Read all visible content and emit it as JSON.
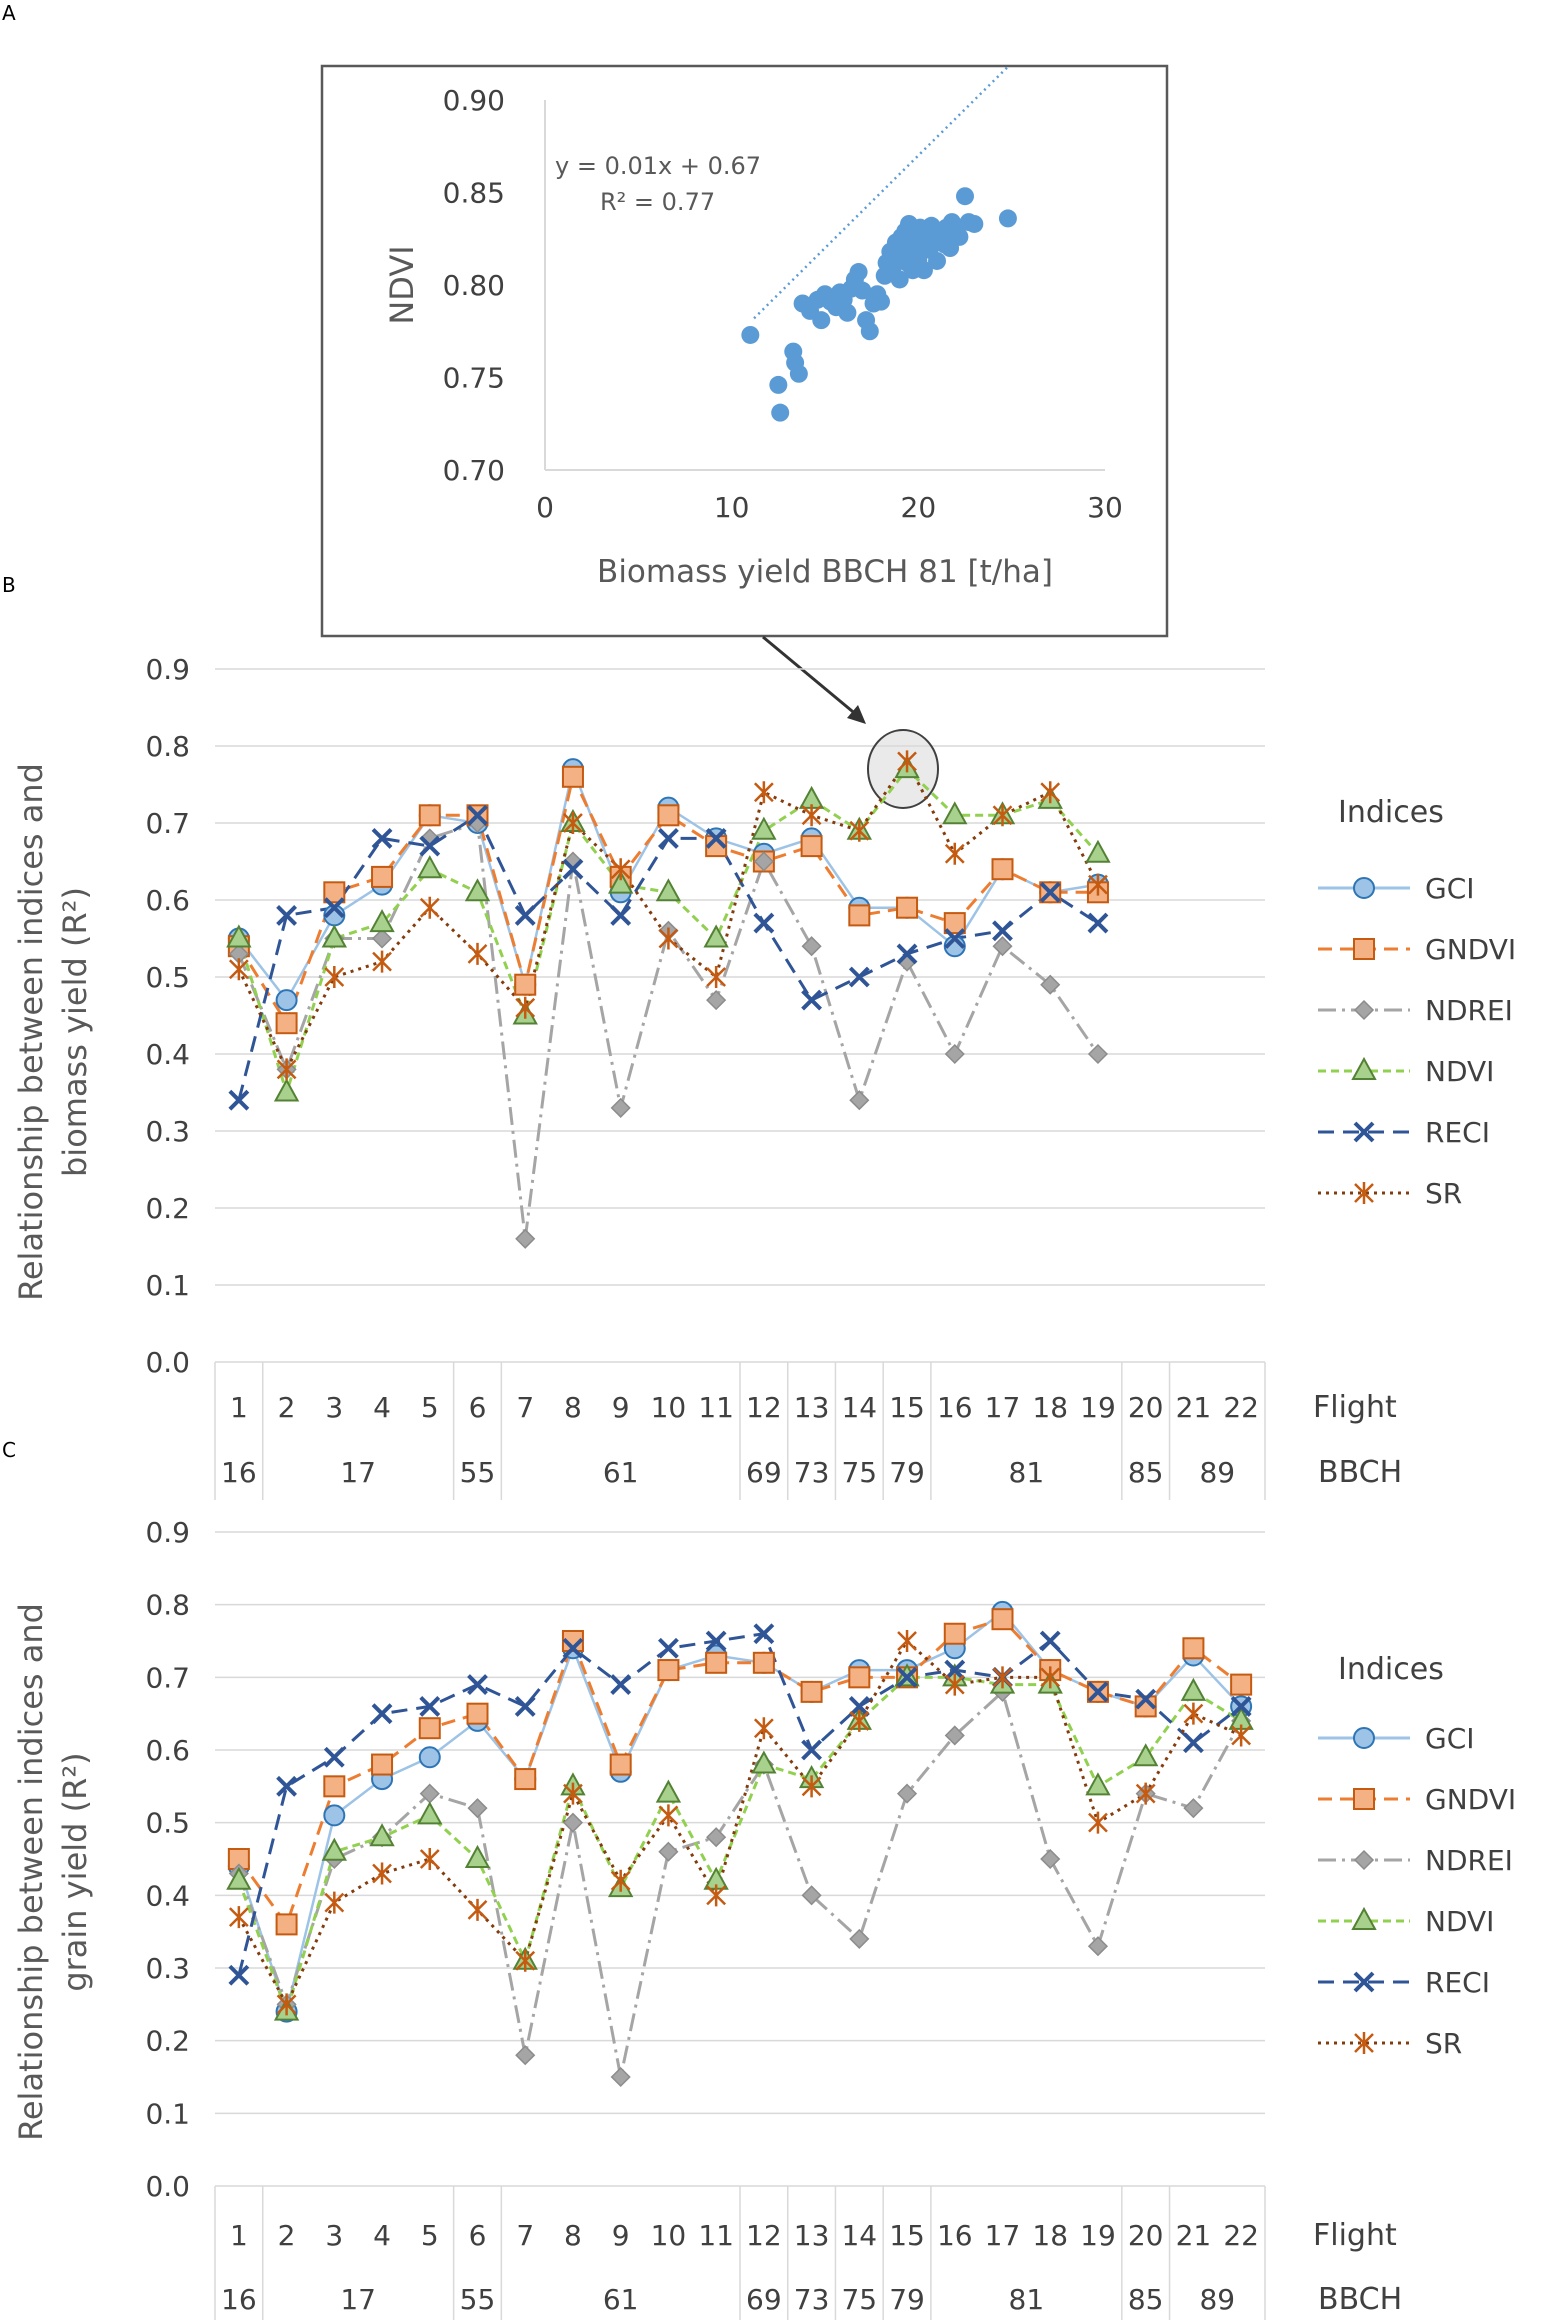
{
  "panel_labels": [
    "A",
    "B",
    "C"
  ],
  "chart_data": [
    {
      "id": "A",
      "type": "scatter",
      "title": "",
      "xlabel": "Biomass yield BBCH 81 [t/ha]",
      "ylabel": "NDVI",
      "xlim": [
        0,
        30
      ],
      "ylim": [
        0.7,
        0.9
      ],
      "xticks": [
        "0",
        "10",
        "20",
        "30"
      ],
      "yticks": [
        "0.70",
        "0.75",
        "0.80",
        "0.85",
        "0.90"
      ],
      "trendline": {
        "slope": 0.01,
        "intercept": 0.67,
        "x_range": [
          11.2,
          24.8
        ]
      },
      "equation": "y = 0.01x + 0.67",
      "r2_label": "R² = 0.77",
      "color": "#5b9bd5",
      "points": [
        [
          11.0,
          0.773
        ],
        [
          12.5,
          0.746
        ],
        [
          12.6,
          0.731
        ],
        [
          13.3,
          0.764
        ],
        [
          13.4,
          0.758
        ],
        [
          13.6,
          0.752
        ],
        [
          13.8,
          0.79
        ],
        [
          14.2,
          0.786
        ],
        [
          14.6,
          0.792
        ],
        [
          14.8,
          0.781
        ],
        [
          15.0,
          0.795
        ],
        [
          15.3,
          0.791
        ],
        [
          15.6,
          0.788
        ],
        [
          15.8,
          0.796
        ],
        [
          16.0,
          0.792
        ],
        [
          16.2,
          0.785
        ],
        [
          16.4,
          0.798
        ],
        [
          16.6,
          0.803
        ],
        [
          16.8,
          0.807
        ],
        [
          17.0,
          0.797
        ],
        [
          17.2,
          0.781
        ],
        [
          17.4,
          0.775
        ],
        [
          17.6,
          0.79
        ],
        [
          17.8,
          0.795
        ],
        [
          18.0,
          0.791
        ],
        [
          18.2,
          0.805
        ],
        [
          18.3,
          0.812
        ],
        [
          18.5,
          0.818
        ],
        [
          18.6,
          0.808
        ],
        [
          18.8,
          0.823
        ],
        [
          18.9,
          0.813
        ],
        [
          19.0,
          0.803
        ],
        [
          19.1,
          0.826
        ],
        [
          19.2,
          0.818
        ],
        [
          19.3,
          0.829
        ],
        [
          19.4,
          0.812
        ],
        [
          19.5,
          0.833
        ],
        [
          19.6,
          0.822
        ],
        [
          19.7,
          0.808
        ],
        [
          19.8,
          0.819
        ],
        [
          19.9,
          0.828
        ],
        [
          20.0,
          0.813
        ],
        [
          20.1,
          0.831
        ],
        [
          20.2,
          0.823
        ],
        [
          20.3,
          0.808
        ],
        [
          20.4,
          0.826
        ],
        [
          20.6,
          0.819
        ],
        [
          20.7,
          0.832
        ],
        [
          20.9,
          0.823
        ],
        [
          21.0,
          0.813
        ],
        [
          21.2,
          0.827
        ],
        [
          21.4,
          0.822
        ],
        [
          21.5,
          0.831
        ],
        [
          21.7,
          0.82
        ],
        [
          21.8,
          0.834
        ],
        [
          22.0,
          0.829
        ],
        [
          22.2,
          0.826
        ],
        [
          22.5,
          0.848
        ],
        [
          22.7,
          0.834
        ],
        [
          23.0,
          0.833
        ],
        [
          24.8,
          0.836
        ]
      ]
    },
    {
      "id": "B",
      "type": "line",
      "ylabel_lines": [
        "Relationship between indices and",
        "biomass yield (R²)"
      ],
      "ylim": [
        0,
        0.9
      ],
      "yticks": [
        "0.0",
        "0.1",
        "0.2",
        "0.3",
        "0.4",
        "0.5",
        "0.6",
        "0.7",
        "0.8",
        "0.9"
      ],
      "flight_label": "Flight",
      "bbch_label": "BBCH",
      "flights": [
        "1",
        "2",
        "3",
        "4",
        "5",
        "6",
        "7",
        "8",
        "9",
        "10",
        "11",
        "12",
        "13",
        "14",
        "15",
        "16",
        "17",
        "18",
        "19",
        "20",
        "21",
        "22"
      ],
      "bbch_groups": [
        {
          "label": "16",
          "span": [
            1,
            1
          ]
        },
        {
          "label": "17",
          "span": [
            2,
            5
          ]
        },
        {
          "label": "55",
          "span": [
            6,
            6
          ]
        },
        {
          "label": "61",
          "span": [
            7,
            11
          ]
        },
        {
          "label": "69",
          "span": [
            12,
            12
          ]
        },
        {
          "label": "73",
          "span": [
            13,
            13
          ]
        },
        {
          "label": "75",
          "span": [
            14,
            14
          ]
        },
        {
          "label": "79",
          "span": [
            15,
            15
          ]
        },
        {
          "label": "81",
          "span": [
            16,
            19
          ]
        },
        {
          "label": "85",
          "span": [
            20,
            20
          ]
        },
        {
          "label": "89",
          "span": [
            21,
            22
          ]
        }
      ],
      "legend_title": "Indices",
      "highlight": {
        "flight": 15,
        "value": 0.78
      },
      "series": [
        {
          "name": "GCI",
          "color": "#9dc3e6",
          "marker": "circle",
          "dash": "",
          "values": [
            0.55,
            0.47,
            0.58,
            0.62,
            0.71,
            0.7,
            0.49,
            0.77,
            0.61,
            0.72,
            0.68,
            0.66,
            0.68,
            0.59,
            0.59,
            0.54,
            0.64,
            0.61,
            0.62
          ]
        },
        {
          "name": "GNDVI",
          "color": "#ed7d31",
          "marker": "square",
          "dash": "14 8",
          "values": [
            0.54,
            0.44,
            0.61,
            0.63,
            0.71,
            0.71,
            0.49,
            0.76,
            0.63,
            0.71,
            0.67,
            0.65,
            0.67,
            0.58,
            0.59,
            0.57,
            0.64,
            0.61,
            0.61
          ]
        },
        {
          "name": "NDREI",
          "color": "#a5a5a5",
          "marker": "diamond",
          "dash": "18 8",
          "values": [
            0.53,
            0.38,
            0.55,
            0.55,
            0.68,
            0.7,
            0.16,
            0.65,
            0.33,
            0.56,
            0.47,
            0.65,
            0.54,
            0.34,
            0.52,
            0.4,
            0.54,
            0.49,
            0.4
          ]
        },
        {
          "name": "NDVI",
          "color": "#92d050",
          "marker": "triangle",
          "dash": "8 5",
          "values": [
            0.55,
            0.35,
            0.55,
            0.57,
            0.64,
            0.61,
            0.45,
            0.7,
            0.62,
            0.61,
            0.55,
            0.69,
            0.73,
            0.69,
            0.77,
            0.71,
            0.71,
            0.73,
            0.66
          ]
        },
        {
          "name": "RECI",
          "color": "#2f5597",
          "marker": "x",
          "dash": "16 9",
          "values": [
            0.34,
            0.58,
            0.59,
            0.68,
            0.67,
            0.71,
            0.58,
            0.64,
            0.58,
            0.68,
            0.68,
            0.57,
            0.47,
            0.5,
            0.53,
            0.55,
            0.56,
            0.61,
            0.57
          ]
        },
        {
          "name": "SR",
          "color": "#843c0c",
          "marker": "star",
          "dash": "3 5",
          "values": [
            0.51,
            0.38,
            0.5,
            0.52,
            0.59,
            0.53,
            0.46,
            0.7,
            0.64,
            0.55,
            0.5,
            0.74,
            0.71,
            0.69,
            0.78,
            0.66,
            0.71,
            0.74,
            0.62
          ]
        }
      ]
    },
    {
      "id": "C",
      "type": "line",
      "ylabel_lines": [
        "Relationship between indices and",
        "grain yield (R²)"
      ],
      "ylim": [
        0,
        0.9
      ],
      "yticks": [
        "0.0",
        "0.1",
        "0.2",
        "0.3",
        "0.4",
        "0.5",
        "0.6",
        "0.7",
        "0.8",
        "0.9"
      ],
      "flight_label": "Flight",
      "bbch_label": "BBCH",
      "flights": [
        "1",
        "2",
        "3",
        "4",
        "5",
        "6",
        "7",
        "8",
        "9",
        "10",
        "11",
        "12",
        "13",
        "14",
        "15",
        "16",
        "17",
        "18",
        "19",
        "20",
        "21",
        "22"
      ],
      "bbch_groups": [
        {
          "label": "16",
          "span": [
            1,
            1
          ]
        },
        {
          "label": "17",
          "span": [
            2,
            5
          ]
        },
        {
          "label": "55",
          "span": [
            6,
            6
          ]
        },
        {
          "label": "61",
          "span": [
            7,
            11
          ]
        },
        {
          "label": "69",
          "span": [
            12,
            12
          ]
        },
        {
          "label": "73",
          "span": [
            13,
            13
          ]
        },
        {
          "label": "75",
          "span": [
            14,
            14
          ]
        },
        {
          "label": "79",
          "span": [
            15,
            15
          ]
        },
        {
          "label": "81",
          "span": [
            16,
            19
          ]
        },
        {
          "label": "85",
          "span": [
            20,
            20
          ]
        },
        {
          "label": "89",
          "span": [
            21,
            22
          ]
        }
      ],
      "legend_title": "Indices",
      "series": [
        {
          "name": "GCI",
          "color": "#9dc3e6",
          "marker": "circle",
          "dash": "",
          "values": [
            0.44,
            0.24,
            0.51,
            0.56,
            0.59,
            0.64,
            0.56,
            0.74,
            0.57,
            0.71,
            0.73,
            0.72,
            0.68,
            0.71,
            0.71,
            0.74,
            0.79,
            0.71,
            0.68,
            0.66,
            0.73,
            0.66
          ]
        },
        {
          "name": "GNDVI",
          "color": "#ed7d31",
          "marker": "square",
          "dash": "14 8",
          "values": [
            0.45,
            0.36,
            0.55,
            0.58,
            0.63,
            0.65,
            0.56,
            0.75,
            0.58,
            0.71,
            0.72,
            0.72,
            0.68,
            0.7,
            0.7,
            0.76,
            0.78,
            0.71,
            0.68,
            0.66,
            0.74,
            0.69
          ]
        },
        {
          "name": "NDREI",
          "color": "#a5a5a5",
          "marker": "diamond",
          "dash": "18 8",
          "values": [
            0.43,
            0.25,
            0.45,
            0.48,
            0.54,
            0.52,
            0.18,
            0.5,
            0.15,
            0.46,
            0.48,
            0.58,
            0.4,
            0.34,
            0.54,
            0.62,
            0.68,
            0.45,
            0.33,
            0.54,
            0.52,
            0.64
          ]
        },
        {
          "name": "NDVI",
          "color": "#92d050",
          "marker": "triangle",
          "dash": "8 5",
          "values": [
            0.42,
            0.24,
            0.46,
            0.48,
            0.51,
            0.45,
            0.31,
            0.55,
            0.41,
            0.54,
            0.42,
            0.58,
            0.56,
            0.64,
            0.7,
            0.7,
            0.69,
            0.69,
            0.55,
            0.59,
            0.68,
            0.64
          ]
        },
        {
          "name": "RECI",
          "color": "#2f5597",
          "marker": "x",
          "dash": "16 9",
          "values": [
            0.29,
            0.55,
            0.59,
            0.65,
            0.66,
            0.69,
            0.66,
            0.74,
            0.69,
            0.74,
            0.75,
            0.76,
            0.6,
            0.66,
            0.7,
            0.71,
            0.7,
            0.75,
            0.68,
            0.67,
            0.61,
            0.66
          ]
        },
        {
          "name": "SR",
          "color": "#843c0c",
          "marker": "star",
          "dash": "3 5",
          "values": [
            0.37,
            0.25,
            0.39,
            0.43,
            0.45,
            0.38,
            0.31,
            0.54,
            0.42,
            0.51,
            0.4,
            0.63,
            0.55,
            0.64,
            0.75,
            0.69,
            0.7,
            0.7,
            0.5,
            0.54,
            0.65,
            0.62
          ]
        }
      ]
    }
  ]
}
